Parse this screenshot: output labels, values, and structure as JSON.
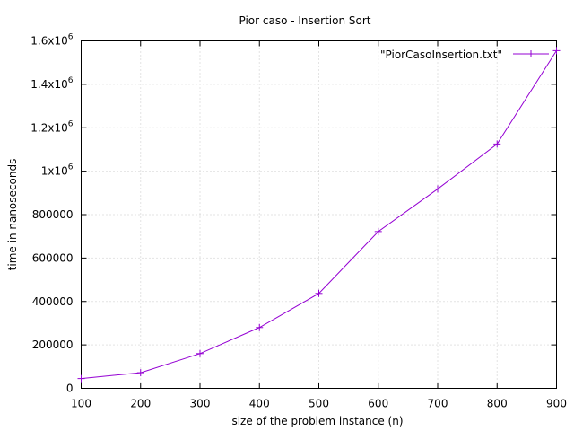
{
  "chart_data": {
    "type": "line",
    "title": "Pior caso - Insertion Sort",
    "xlabel": "size of the problem instance (n)",
    "ylabel": "time in nanoseconds",
    "xlim": [
      100,
      900
    ],
    "ylim": [
      0,
      1600000
    ],
    "grid": true,
    "legend_position": "top-right",
    "x_ticks": [
      100,
      200,
      300,
      400,
      500,
      600,
      700,
      800,
      900
    ],
    "x_tick_labels": [
      "100",
      "200",
      "300",
      "400",
      "500",
      "600",
      "700",
      "800",
      "900"
    ],
    "y_ticks": [
      0,
      200000,
      400000,
      600000,
      800000,
      1000000,
      1200000,
      1400000,
      1600000
    ],
    "y_tick_labels": [
      {
        "text": "0",
        "exp": ""
      },
      {
        "text": "200000",
        "exp": ""
      },
      {
        "text": "400000",
        "exp": ""
      },
      {
        "text": "600000",
        "exp": ""
      },
      {
        "text": "800000",
        "exp": ""
      },
      {
        "text": "1x10",
        "exp": "6"
      },
      {
        "text": "1.2x10",
        "exp": "6"
      },
      {
        "text": "1.4x10",
        "exp": "6"
      },
      {
        "text": "1.6x10",
        "exp": "6"
      }
    ],
    "series": [
      {
        "name": "\"PiorCasoInsertion.txt\"",
        "color": "#9400d3",
        "x": [
          100,
          200,
          300,
          400,
          500,
          600,
          700,
          800,
          900
        ],
        "y": [
          45000,
          72000,
          160000,
          280000,
          437000,
          722000,
          918000,
          1125000,
          1555000
        ]
      }
    ]
  }
}
